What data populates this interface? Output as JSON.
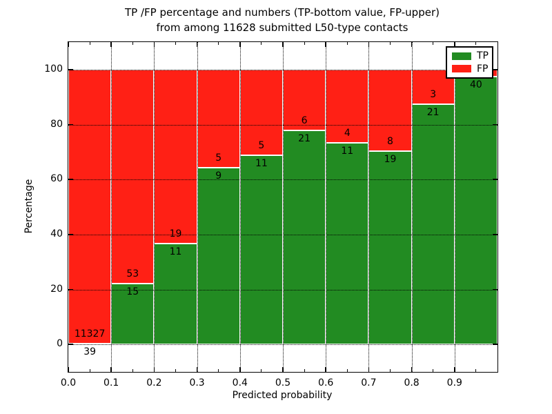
{
  "figure": {
    "title_line1": "TP /FP percentage and numbers (TP-bottom value, FP-upper)",
    "title_line2": "from among 11628 submitted L50-type contacts"
  },
  "chart_data": {
    "type": "bar",
    "stacked": true,
    "title": "TP /FP percentage and numbers (TP-bottom value, FP-upper) from among 11628 submitted L50-type contacts",
    "xlabel": "Predicted probability",
    "ylabel": "Percentage",
    "xlim": [
      0.0,
      1.0
    ],
    "ylim": [
      -10,
      110
    ],
    "x_tick_values": [
      0.0,
      0.1,
      0.2,
      0.3,
      0.4,
      0.5,
      0.6,
      0.7,
      0.8,
      0.9
    ],
    "x_tick_labels": [
      "0.0",
      "0.1",
      "0.2",
      "0.3",
      "0.4",
      "0.5",
      "0.6",
      "0.7",
      "0.8",
      "0.9"
    ],
    "x_minor_tick_values": [
      0.05,
      0.15,
      0.25,
      0.35,
      0.45,
      0.55,
      0.65,
      0.75,
      0.85,
      0.95
    ],
    "y_tick_values": [
      0,
      20,
      40,
      60,
      80,
      100
    ],
    "y_tick_labels": [
      "0",
      "20",
      "40",
      "60",
      "80",
      "100"
    ],
    "grid": true,
    "legend_position": "upper right",
    "legend": [
      {
        "label": "TP",
        "color": "#228b22"
      },
      {
        "label": "FP",
        "color": "#ff2015"
      }
    ],
    "colors": {
      "tp": "#228b22",
      "fp": "#ff2015",
      "bar_edge": "#ffffff",
      "grid": "#000000",
      "text": "#000000"
    },
    "total_submitted": 11628,
    "bars": [
      {
        "x0": 0.0,
        "x1": 0.1,
        "tp_count": 39,
        "fp_count": 11327,
        "tp_pct": 0.34,
        "tp_label": "39",
        "fp_label": "11327"
      },
      {
        "x0": 0.1,
        "x1": 0.2,
        "tp_count": 15,
        "fp_count": 53,
        "tp_pct": 22.06,
        "tp_label": "15",
        "fp_label": "53"
      },
      {
        "x0": 0.2,
        "x1": 0.3,
        "tp_count": 11,
        "fp_count": 19,
        "tp_pct": 36.67,
        "tp_label": "11",
        "fp_label": "19"
      },
      {
        "x0": 0.3,
        "x1": 0.4,
        "tp_count": 9,
        "fp_count": 5,
        "tp_pct": 64.29,
        "tp_label": "9",
        "fp_label": "5"
      },
      {
        "x0": 0.4,
        "x1": 0.5,
        "tp_count": 11,
        "fp_count": 5,
        "tp_pct": 68.75,
        "tp_label": "11",
        "fp_label": "5"
      },
      {
        "x0": 0.5,
        "x1": 0.6,
        "tp_count": 21,
        "fp_count": 6,
        "tp_pct": 77.78,
        "tp_label": "21",
        "fp_label": "6"
      },
      {
        "x0": 0.6,
        "x1": 0.7,
        "tp_count": 11,
        "fp_count": 4,
        "tp_pct": 73.33,
        "tp_label": "11",
        "fp_label": "4"
      },
      {
        "x0": 0.7,
        "x1": 0.8,
        "tp_count": 19,
        "fp_count": 8,
        "tp_pct": 70.37,
        "tp_label": "19",
        "fp_label": "8"
      },
      {
        "x0": 0.8,
        "x1": 0.9,
        "tp_count": 21,
        "fp_count": 3,
        "tp_pct": 87.5,
        "tp_label": "21",
        "fp_label": "3"
      },
      {
        "x0": 0.9,
        "x1": 1.0,
        "tp_count": 40,
        "fp_count": null,
        "tp_pct": 97.5,
        "tp_label": "40",
        "fp_label": null
      }
    ]
  }
}
